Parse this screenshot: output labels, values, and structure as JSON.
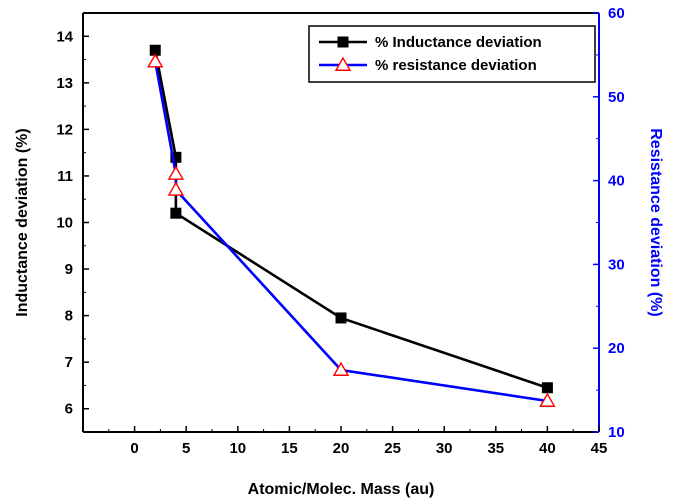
{
  "chart_data": {
    "type": "line",
    "xlabel": "Atomic/Molec. Mass (au)",
    "xlim": [
      -5,
      45
    ],
    "xticks": [
      0,
      5,
      10,
      15,
      20,
      25,
      30,
      35,
      40,
      45
    ],
    "left_axis": {
      "label": "Inductance deviation (%)",
      "ylim": [
        5.5,
        14.5
      ],
      "ticks": [
        6,
        7,
        8,
        9,
        10,
        11,
        12,
        13,
        14
      ],
      "color": "#000000"
    },
    "right_axis": {
      "label": "Resistance deviation (%)",
      "ylim": [
        10,
        60
      ],
      "ticks": [
        10,
        20,
        30,
        40,
        50,
        60
      ],
      "color": "#0000ff"
    },
    "series": [
      {
        "name": "% Inductance deviation",
        "axis": "left",
        "color": "#000000",
        "marker": "square",
        "x": [
          2,
          4,
          4,
          20,
          40
        ],
        "y": [
          13.7,
          11.4,
          10.2,
          7.95,
          6.45
        ]
      },
      {
        "name": "% resistance deviation",
        "axis": "right",
        "color": "#0000ff",
        "marker": "triangle",
        "marker_color": "#ff0000",
        "x": [
          2,
          4,
          4,
          20,
          40
        ],
        "y": [
          54.2,
          40.8,
          38.9,
          17.4,
          13.7
        ]
      }
    ],
    "legend": {
      "position": "top-right"
    },
    "grid": false
  }
}
